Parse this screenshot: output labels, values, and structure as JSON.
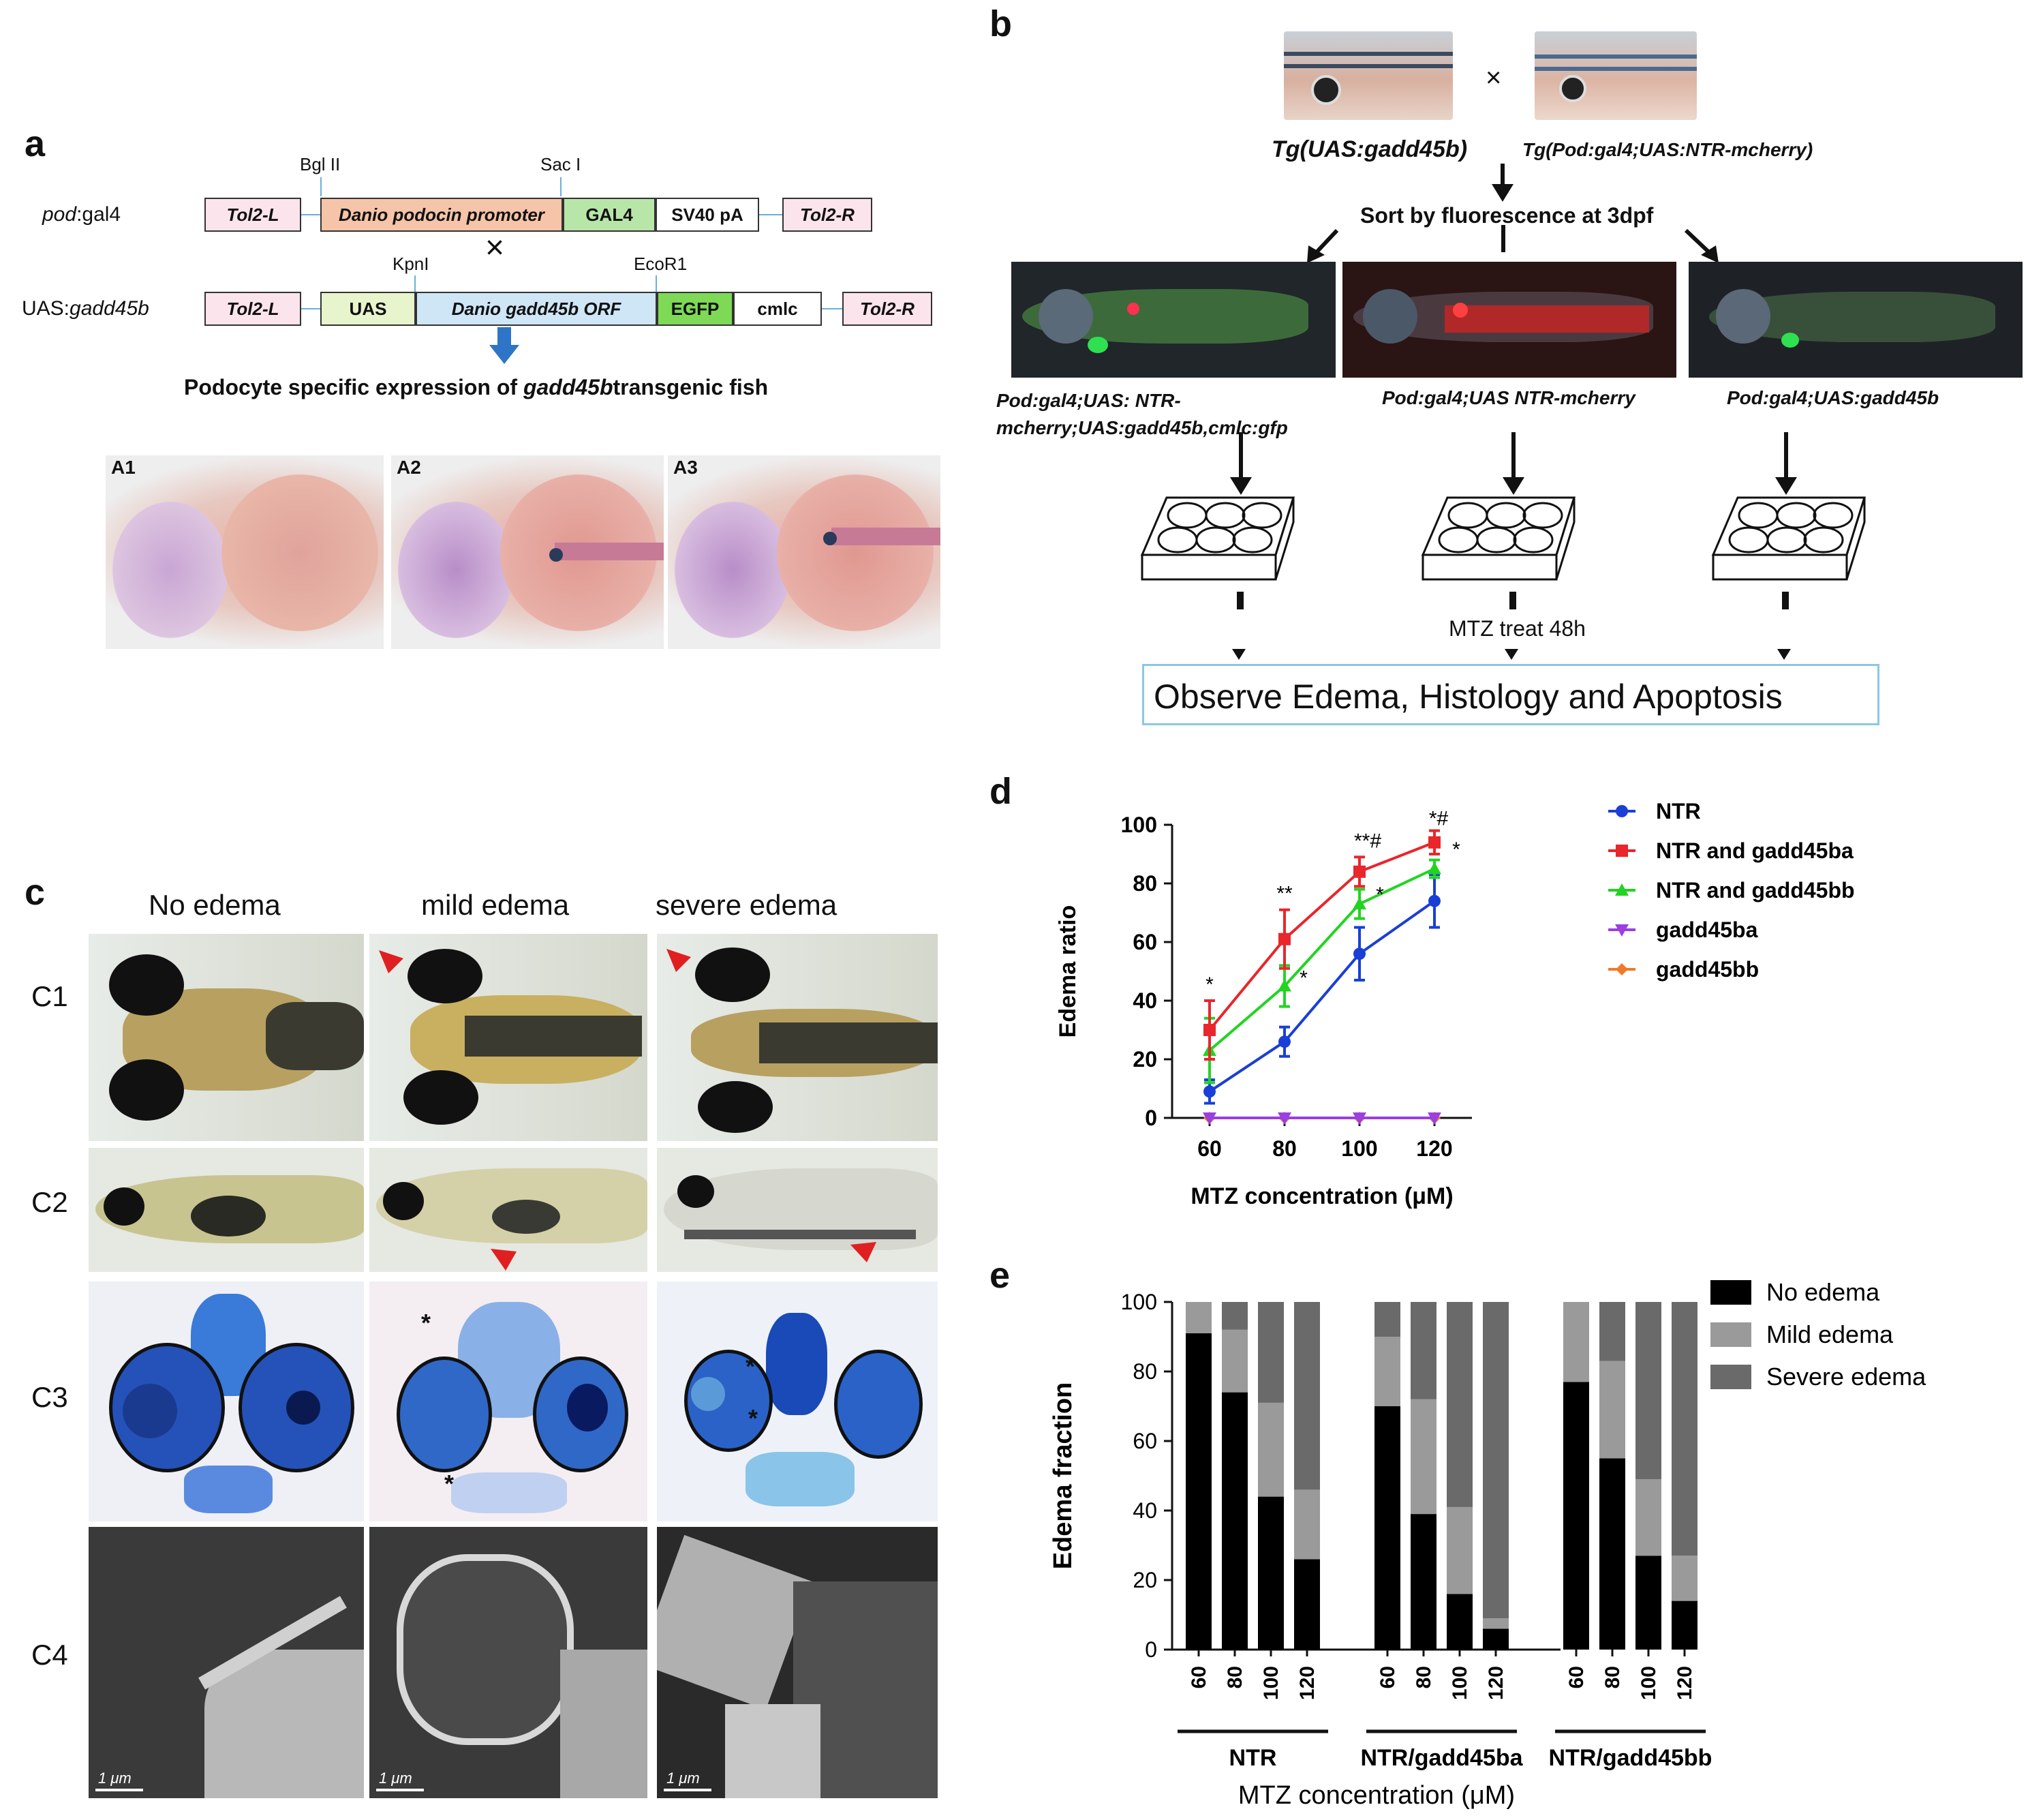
{
  "panel_a": {
    "letter": "a",
    "construct1": {
      "name_italic": "pod",
      "name_rest": ":gal4",
      "boxes": [
        "Tol2-L",
        "Danio podocin promoter",
        "GAL4",
        "SV40 pA",
        "Tol2-R"
      ],
      "sites": [
        "Bgl II",
        "Sac I"
      ]
    },
    "cross_symbol": "×",
    "construct2": {
      "name_rest": "UAS:",
      "name_italic": "gadd45b",
      "boxes": [
        "Tol2-L",
        "UAS",
        "Danio gadd45b ORF",
        "EGFP",
        "cmlc",
        "Tol2-R"
      ],
      "sites": [
        "KpnI",
        "EcoR1"
      ]
    },
    "caption_pre": "Podocyte specific expression of ",
    "caption_gene": "gadd45b",
    "caption_post": "transgenic fish",
    "images": [
      "A1",
      "A2",
      "A3"
    ]
  },
  "panel_b": {
    "letter": "b",
    "parent1": "Tg(UAS:gadd45b)",
    "parent2": "Tg(Pod:gal4;UAS:NTR-mcherry)",
    "cross_symbol": "×",
    "sort_label": "Sort by fluorescence at 3dpf",
    "group1_line1": "Pod:gal4;UAS: NTR-",
    "group1_line2": "mcherry;UAS:gadd45b,cmlc:gfp",
    "group2": "Pod:gal4;UAS NTR-mcherry",
    "group3": "Pod:gal4;UAS:gadd45b",
    "treatment": "MTZ treat 48h",
    "observe": "Observe Edema, Histology and Apoptosis"
  },
  "panel_c": {
    "letter": "c",
    "columns": [
      "No edema",
      "mild edema",
      "severe edema"
    ],
    "rows": [
      "C1",
      "C2",
      "C3",
      "C4"
    ],
    "scale": "1 μm"
  },
  "panel_d": {
    "letter": "d",
    "colors": {
      "NTR": "#1a3fd6",
      "NTR and gadd45ba": "#e8262b",
      "NTR and gadd45bb": "#22d422",
      "gadd45ba": "#9b3fe0",
      "gadd45bb": "#f07a2a"
    }
  },
  "panel_e": {
    "letter": "e",
    "colors": {
      "No edema": "#000000",
      "Mild edema": "#9a9a9a",
      "Severe edema": "#6a6a6a"
    }
  },
  "chart_data": [
    {
      "type": "line",
      "xlabel": "MTZ concentration (μM)",
      "ylabel": "Edema ratio",
      "x": [
        60,
        80,
        100,
        120
      ],
      "ylim": [
        0,
        100
      ],
      "yticks": [
        0,
        20,
        40,
        60,
        80,
        100
      ],
      "legend_placement": "right",
      "series": [
        {
          "name": "NTR",
          "values": [
            9,
            26,
            56,
            74
          ],
          "errors": [
            4,
            5,
            9,
            9
          ]
        },
        {
          "name": "NTR and gadd45ba",
          "values": [
            30,
            61,
            84,
            94
          ],
          "errors": [
            10,
            10,
            5,
            4
          ]
        },
        {
          "name": "NTR and gadd45bb",
          "values": [
            23,
            45,
            73,
            85
          ],
          "errors": [
            11,
            7,
            5,
            3
          ]
        },
        {
          "name": "gadd45ba",
          "values": [
            0,
            0,
            0,
            0
          ],
          "errors": [
            0,
            0,
            0,
            0
          ]
        },
        {
          "name": "gadd45bb",
          "values": [
            0,
            0,
            0,
            0
          ],
          "errors": [
            0,
            0,
            0,
            0
          ]
        }
      ],
      "annotations": [
        {
          "x": 60,
          "text": "*"
        },
        {
          "x": 80,
          "text": "**"
        },
        {
          "x": 80,
          "text": "*"
        },
        {
          "x": 100,
          "text": "**#"
        },
        {
          "x": 100,
          "text": "*"
        },
        {
          "x": 120,
          "text": "*#"
        },
        {
          "x": 120,
          "text": "*"
        }
      ]
    },
    {
      "type": "bar",
      "stacked": true,
      "xlabel": "MTZ concentration (μM)",
      "ylabel": "Edema fraction",
      "ylim": [
        0,
        100
      ],
      "yticks": [
        0,
        20,
        40,
        60,
        80,
        100
      ],
      "groups": [
        "NTR",
        "NTR/gadd45ba",
        "NTR/gadd45bb"
      ],
      "categories": [
        "60",
        "80",
        "100",
        "120"
      ],
      "legend_placement": "top-right",
      "series": [
        {
          "name": "No edema",
          "values": [
            [
              91,
              74,
              44,
              26
            ],
            [
              70,
              39,
              16,
              6
            ],
            [
              77,
              55,
              27,
              14
            ]
          ]
        },
        {
          "name": "Mild edema",
          "values": [
            [
              9,
              18,
              27,
              20
            ],
            [
              20,
              33,
              25,
              3
            ],
            [
              23,
              28,
              22,
              13
            ]
          ]
        },
        {
          "name": "Severe edema",
          "values": [
            [
              0,
              8,
              29,
              54
            ],
            [
              10,
              28,
              59,
              91
            ],
            [
              0,
              17,
              51,
              73
            ]
          ]
        }
      ]
    }
  ]
}
